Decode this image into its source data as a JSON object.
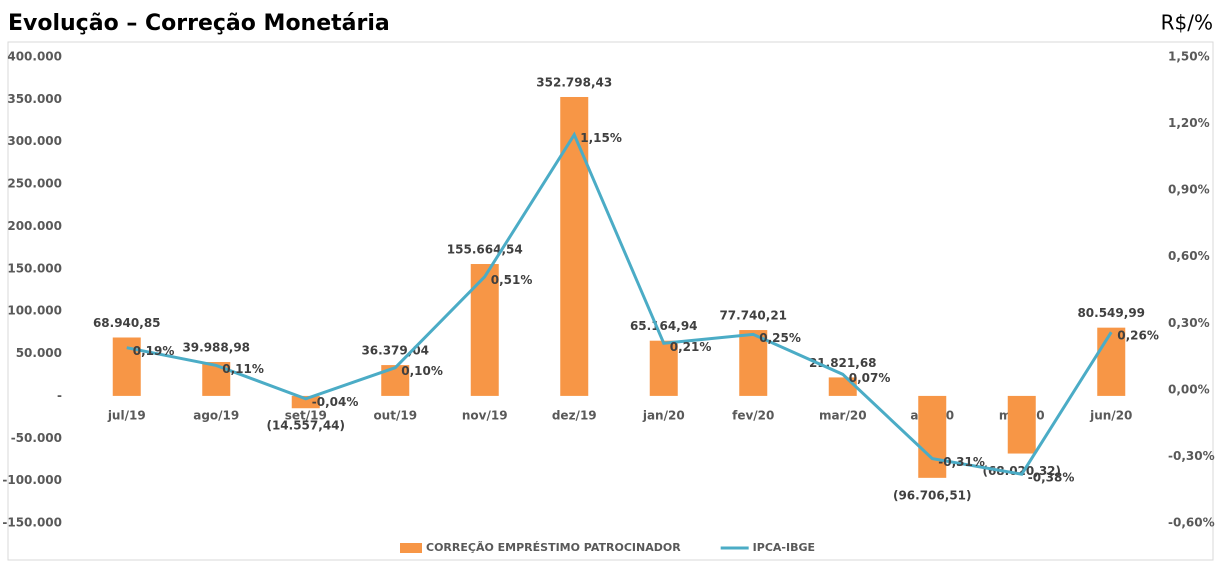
{
  "chart_data": {
    "type": "bar-line",
    "title": "Evolução – Correção Monetária",
    "unit_label": "R$/%",
    "categories": [
      "jul/19",
      "ago/19",
      "set/19",
      "out/19",
      "nov/19",
      "dez/19",
      "jan/20",
      "fev/20",
      "mar/20",
      "abr/20",
      "mai/20",
      "jun/20"
    ],
    "series": [
      {
        "name": "CORREÇÃO EMPRÉSTIMO PATROCINADOR",
        "type": "bar",
        "color": "#f79646",
        "values": [
          68940.85,
          39988.98,
          -14557.44,
          36379.04,
          155664.54,
          352798.43,
          65164.94,
          77740.21,
          21821.68,
          -96706.51,
          -68020.32,
          80549.99
        ],
        "value_labels": [
          "68.940,85",
          "39.988,98",
          "(14.557,44)",
          "36.379,04",
          "155.664,54",
          "352.798,43",
          "65.164,94",
          "77.740,21",
          "21.821,68",
          "(96.706,51)",
          "(68.020,32)",
          "80.549,99"
        ]
      },
      {
        "name": "IPCA-IBGE",
        "type": "line",
        "axis": "y2",
        "color": "#4bacc6",
        "values": [
          0.19,
          0.11,
          -0.04,
          0.1,
          0.51,
          1.15,
          0.21,
          0.25,
          0.07,
          -0.31,
          -0.38,
          0.26
        ],
        "value_labels": [
          "0,19%",
          "0,11%",
          "-0,04%",
          "0,10%",
          "0,51%",
          "1,15%",
          "0,21%",
          "0,25%",
          "0,07%",
          "-0,31%",
          "-0,38%",
          "0,26%"
        ]
      }
    ],
    "ylim": [
      -150000,
      400000
    ],
    "yticks": [
      {
        "value": -150000,
        "label": "-150.000"
      },
      {
        "value": -100000,
        "label": "-100.000"
      },
      {
        "value": -50000,
        "label": "-50.000"
      },
      {
        "value": 0,
        "label": "-"
      },
      {
        "value": 50000,
        "label": "50.000"
      },
      {
        "value": 100000,
        "label": "100.000"
      },
      {
        "value": 150000,
        "label": "150.000"
      },
      {
        "value": 200000,
        "label": "200.000"
      },
      {
        "value": 250000,
        "label": "250.000"
      },
      {
        "value": 300000,
        "label": "300.000"
      },
      {
        "value": 350000,
        "label": "350.000"
      },
      {
        "value": 400000,
        "label": "400.000"
      }
    ],
    "y2lim": [
      -0.6,
      1.5
    ],
    "y2ticks": [
      {
        "value": -0.6,
        "label": "-0,60%"
      },
      {
        "value": -0.3,
        "label": "-0,30%"
      },
      {
        "value": 0,
        "label": "0,00%"
      },
      {
        "value": 0.3,
        "label": "0,30%"
      },
      {
        "value": 0.6,
        "label": "0,60%"
      },
      {
        "value": 0.9,
        "label": "0,90%"
      },
      {
        "value": 1.2,
        "label": "1,20%"
      },
      {
        "value": 1.5,
        "label": "1,50%"
      }
    ],
    "grid": false,
    "legend": "bottom"
  }
}
